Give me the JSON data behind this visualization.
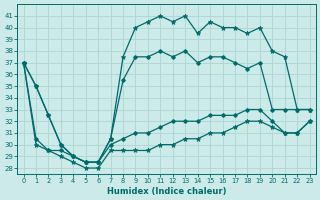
{
  "xlabel": "Humidex (Indice chaleur)",
  "bg_color": "#cceae8",
  "grid_color": "#b0d8d5",
  "line_color": "#006b6b",
  "xlim": [
    -0.5,
    23.5
  ],
  "ylim": [
    27.5,
    42.0
  ],
  "xticks": [
    0,
    1,
    2,
    3,
    4,
    5,
    6,
    7,
    8,
    9,
    10,
    11,
    12,
    13,
    14,
    15,
    16,
    17,
    18,
    19,
    20,
    21,
    22,
    23
  ],
  "yticks": [
    28,
    29,
    30,
    31,
    32,
    33,
    34,
    35,
    36,
    37,
    38,
    39,
    40,
    41
  ],
  "series": {
    "max": [
      37,
      35,
      32.5,
      30,
      29,
      28.5,
      28.5,
      30.5,
      37.5,
      40,
      40.5,
      41,
      40.5,
      41,
      39.5,
      40.5,
      40,
      40,
      39.5,
      40,
      38,
      37.5,
      33,
      33
    ],
    "upper": [
      37,
      35,
      32.5,
      30,
      29,
      28.5,
      28.5,
      30.5,
      35.5,
      37.5,
      37.5,
      38,
      37.5,
      38,
      37,
      37.5,
      37.5,
      37,
      36.5,
      37,
      33,
      33,
      33,
      33
    ],
    "lower": [
      37,
      30.5,
      29.5,
      29.5,
      29,
      28.5,
      28.5,
      30,
      30.5,
      31,
      31,
      31.5,
      32,
      32,
      32,
      32.5,
      32.5,
      32.5,
      33,
      33,
      32,
      31,
      31,
      32
    ],
    "min": [
      37,
      30,
      29.5,
      29,
      28.5,
      28.0,
      28.0,
      29.5,
      29.5,
      29.5,
      29.5,
      30,
      30,
      30.5,
      30.5,
      31,
      31,
      31.5,
      32,
      32,
      31.5,
      31,
      31,
      32
    ]
  }
}
